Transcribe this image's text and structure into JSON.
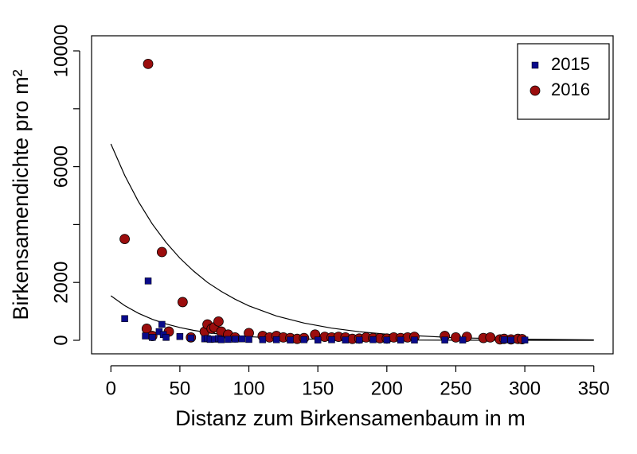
{
  "chart_data": {
    "type": "scatter",
    "xlabel": "Distanz zum Birkensamenbaum in m",
    "ylabel": "Birkensamendichte pro m²",
    "xlim": [
      -14,
      364
    ],
    "ylim": [
      -467,
      10522
    ],
    "xticks": [
      0,
      50,
      100,
      150,
      200,
      250,
      300,
      350
    ],
    "yticks": [
      0,
      2000,
      {
        "value": 4000,
        "label": null
      },
      6000,
      {
        "value": 8000,
        "label": null
      },
      10000
    ],
    "legend": "topright",
    "series": [
      {
        "name": "2015",
        "color": "#0a0a8a",
        "marker": "square",
        "x": [
          10,
          27,
          25,
          30,
          35,
          37,
          38,
          40,
          50,
          58,
          68,
          70,
          72,
          75,
          78,
          80,
          85,
          90,
          95,
          100,
          110,
          120,
          130,
          140,
          150,
          160,
          170,
          180,
          190,
          200,
          210,
          220,
          242,
          255,
          285,
          290,
          300
        ],
        "values": [
          750,
          2050,
          150,
          100,
          300,
          550,
          200,
          100,
          130,
          80,
          50,
          60,
          30,
          40,
          60,
          20,
          30,
          40,
          50,
          30,
          20,
          20,
          10,
          20,
          10,
          20,
          10,
          10,
          20,
          10,
          10,
          10,
          10,
          10,
          20,
          10,
          10
        ]
      },
      {
        "name": "2016",
        "color": "#9b0d0d",
        "marker": "circle",
        "x": [
          10,
          27,
          26,
          30,
          37,
          42,
          52,
          58,
          68,
          70,
          73,
          75,
          78,
          80,
          85,
          90,
          100,
          110,
          115,
          120,
          125,
          130,
          135,
          140,
          148,
          155,
          160,
          165,
          170,
          175,
          180,
          185,
          190,
          195,
          200,
          205,
          210,
          215,
          220,
          242,
          250,
          258,
          270,
          275,
          282,
          285,
          290,
          295,
          298
        ],
        "values": [
          3500,
          9550,
          400,
          150,
          3050,
          300,
          1320,
          100,
          300,
          550,
          400,
          450,
          650,
          300,
          200,
          100,
          250,
          150,
          100,
          150,
          100,
          80,
          50,
          80,
          200,
          120,
          100,
          120,
          100,
          50,
          60,
          100,
          80,
          70,
          60,
          100,
          80,
          100,
          120,
          150,
          100,
          120,
          80,
          100,
          30,
          50,
          30,
          50,
          40
        ]
      }
    ],
    "fits": [
      {
        "color": "#000000",
        "x": [
          0,
          10,
          20,
          30,
          40,
          50,
          60,
          70,
          80,
          90,
          100,
          120,
          140,
          160,
          180,
          200,
          250,
          300,
          350
        ],
        "values": [
          1538,
          1198,
          933,
          727,
          566,
          441,
          343,
          267,
          208,
          162,
          126,
          77,
          46,
          28,
          17,
          10,
          3,
          1,
          0
        ]
      },
      {
        "color": "#000000",
        "x": [
          0,
          10,
          20,
          30,
          40,
          50,
          60,
          70,
          80,
          90,
          100,
          120,
          140,
          160,
          180,
          200,
          250,
          300,
          350
        ],
        "values": [
          6786,
          5700,
          4790,
          4020,
          3380,
          2840,
          2390,
          2000,
          1690,
          1420,
          1190,
          840,
          595,
          420,
          297,
          210,
          88,
          37,
          15
        ]
      }
    ]
  }
}
